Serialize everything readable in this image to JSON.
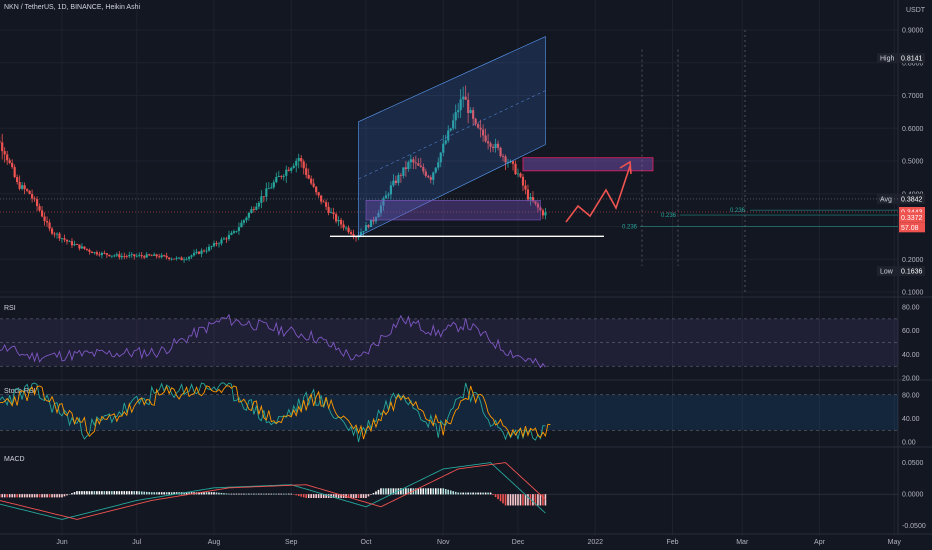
{
  "header": {
    "symbol": "NKN / TetherUS, 1D, BINANCE, Heikin Ashi"
  },
  "price_axis": {
    "currency": "USDT",
    "ticks": [
      "0.9000",
      "0.8000",
      "0.7000",
      "0.6000",
      "0.5000",
      "0.4000",
      "0.3000",
      "0.2000",
      "0.1000"
    ],
    "high": {
      "label": "High",
      "value": "0.8141"
    },
    "avg": {
      "label": "Avg",
      "value": "0.3842"
    },
    "current": {
      "value": "0.3443",
      "close": "0.3372",
      "rsi": "57.08"
    },
    "low": {
      "label": "Low",
      "value": "0.1636"
    }
  },
  "fib": [
    "0.236",
    "0.236",
    "0.236"
  ],
  "panes": {
    "rsi": {
      "label": "RSI",
      "ticks": [
        "80.00",
        "60.00",
        "40.00",
        "20.00"
      ]
    },
    "stoch": {
      "label": "Stoch RSI",
      "ticks": [
        "80.00",
        "40.00",
        "0.00"
      ]
    },
    "macd": {
      "label": "MACD",
      "ticks": [
        "0.0500",
        "0.0000",
        "-0.0500"
      ]
    }
  },
  "time_axis": [
    "Jun",
    "Jul",
    "Aug",
    "Sep",
    "Oct",
    "Nov",
    "Dec",
    "2022",
    "Feb",
    "Mar",
    "Apr",
    "May"
  ],
  "colors": {
    "up": "#26a69a",
    "down": "#ef5350",
    "bg": "#131722",
    "grid": "#1e222d",
    "rsi": "#7e57c2",
    "macd": "#26a69a",
    "signal": "#ef5350"
  },
  "chart_data": [
    {
      "type": "candlestick",
      "title": "NKN / TetherUS, 1D, BINANCE, Heikin Ashi",
      "x_start": "2021-05-01",
      "x_end": "2021-12-12",
      "ylim": [
        0.1,
        0.9
      ],
      "anchors": [
        [
          "2021-05-01",
          0.62
        ],
        [
          "2021-05-06",
          0.58
        ],
        [
          "2021-05-10",
          0.53
        ],
        [
          "2021-05-15",
          0.43
        ],
        [
          "2021-05-20",
          0.4
        ],
        [
          "2021-05-24",
          0.35
        ],
        [
          "2021-05-28",
          0.29
        ],
        [
          "2021-06-05",
          0.25
        ],
        [
          "2021-06-15",
          0.22
        ],
        [
          "2021-06-25",
          0.21
        ],
        [
          "2021-07-10",
          0.21
        ],
        [
          "2021-07-20",
          0.2
        ],
        [
          "2021-07-30",
          0.23
        ],
        [
          "2021-08-10",
          0.28
        ],
        [
          "2021-08-20",
          0.38
        ],
        [
          "2021-08-28",
          0.45
        ],
        [
          "2021-09-05",
          0.51
        ],
        [
          "2021-09-12",
          0.4
        ],
        [
          "2021-09-20",
          0.32
        ],
        [
          "2021-09-28",
          0.27
        ],
        [
          "2021-10-05",
          0.32
        ],
        [
          "2021-10-12",
          0.42
        ],
        [
          "2021-10-20",
          0.5
        ],
        [
          "2021-10-28",
          0.45
        ],
        [
          "2021-11-05",
          0.6
        ],
        [
          "2021-11-10",
          0.7
        ],
        [
          "2021-11-15",
          0.6
        ],
        [
          "2021-11-22",
          0.55
        ],
        [
          "2021-11-28",
          0.5
        ],
        [
          "2021-12-02",
          0.46
        ],
        [
          "2021-12-06",
          0.39
        ],
        [
          "2021-12-12",
          0.34
        ]
      ]
    },
    {
      "type": "line",
      "name": "RSI",
      "ylim": [
        20,
        80
      ],
      "x": [
        "2021-05-01",
        "2021-05-20",
        "2021-06-10",
        "2021-07-10",
        "2021-08-05",
        "2021-08-25",
        "2021-09-10",
        "2021-09-28",
        "2021-10-15",
        "2021-10-30",
        "2021-11-10",
        "2021-11-25",
        "2021-12-12"
      ],
      "values": [
        50,
        38,
        40,
        42,
        70,
        62,
        55,
        35,
        70,
        58,
        66,
        45,
        28
      ]
    },
    {
      "type": "line",
      "name": "Stoch RSI",
      "ylim": [
        0,
        100
      ],
      "x": [
        "2021-05-01",
        "2021-05-20",
        "2021-06-10",
        "2021-07-10",
        "2021-08-05",
        "2021-08-25",
        "2021-09-10",
        "2021-09-28",
        "2021-10-15",
        "2021-10-30",
        "2021-11-10",
        "2021-11-25",
        "2021-12-12"
      ],
      "values": [
        60,
        90,
        20,
        85,
        95,
        30,
        80,
        10,
        90,
        20,
        95,
        10,
        20
      ]
    },
    {
      "type": "bar",
      "name": "MACD",
      "ylim": [
        -0.06,
        0.06
      ],
      "x": [
        "2021-05-01",
        "2021-06-01",
        "2021-07-01",
        "2021-08-01",
        "2021-09-01",
        "2021-10-01",
        "2021-11-01",
        "2021-11-20",
        "2021-12-12"
      ],
      "values": [
        -0.01,
        -0.04,
        -0.01,
        0.01,
        0.015,
        -0.02,
        0.04,
        0.05,
        -0.03
      ]
    }
  ]
}
